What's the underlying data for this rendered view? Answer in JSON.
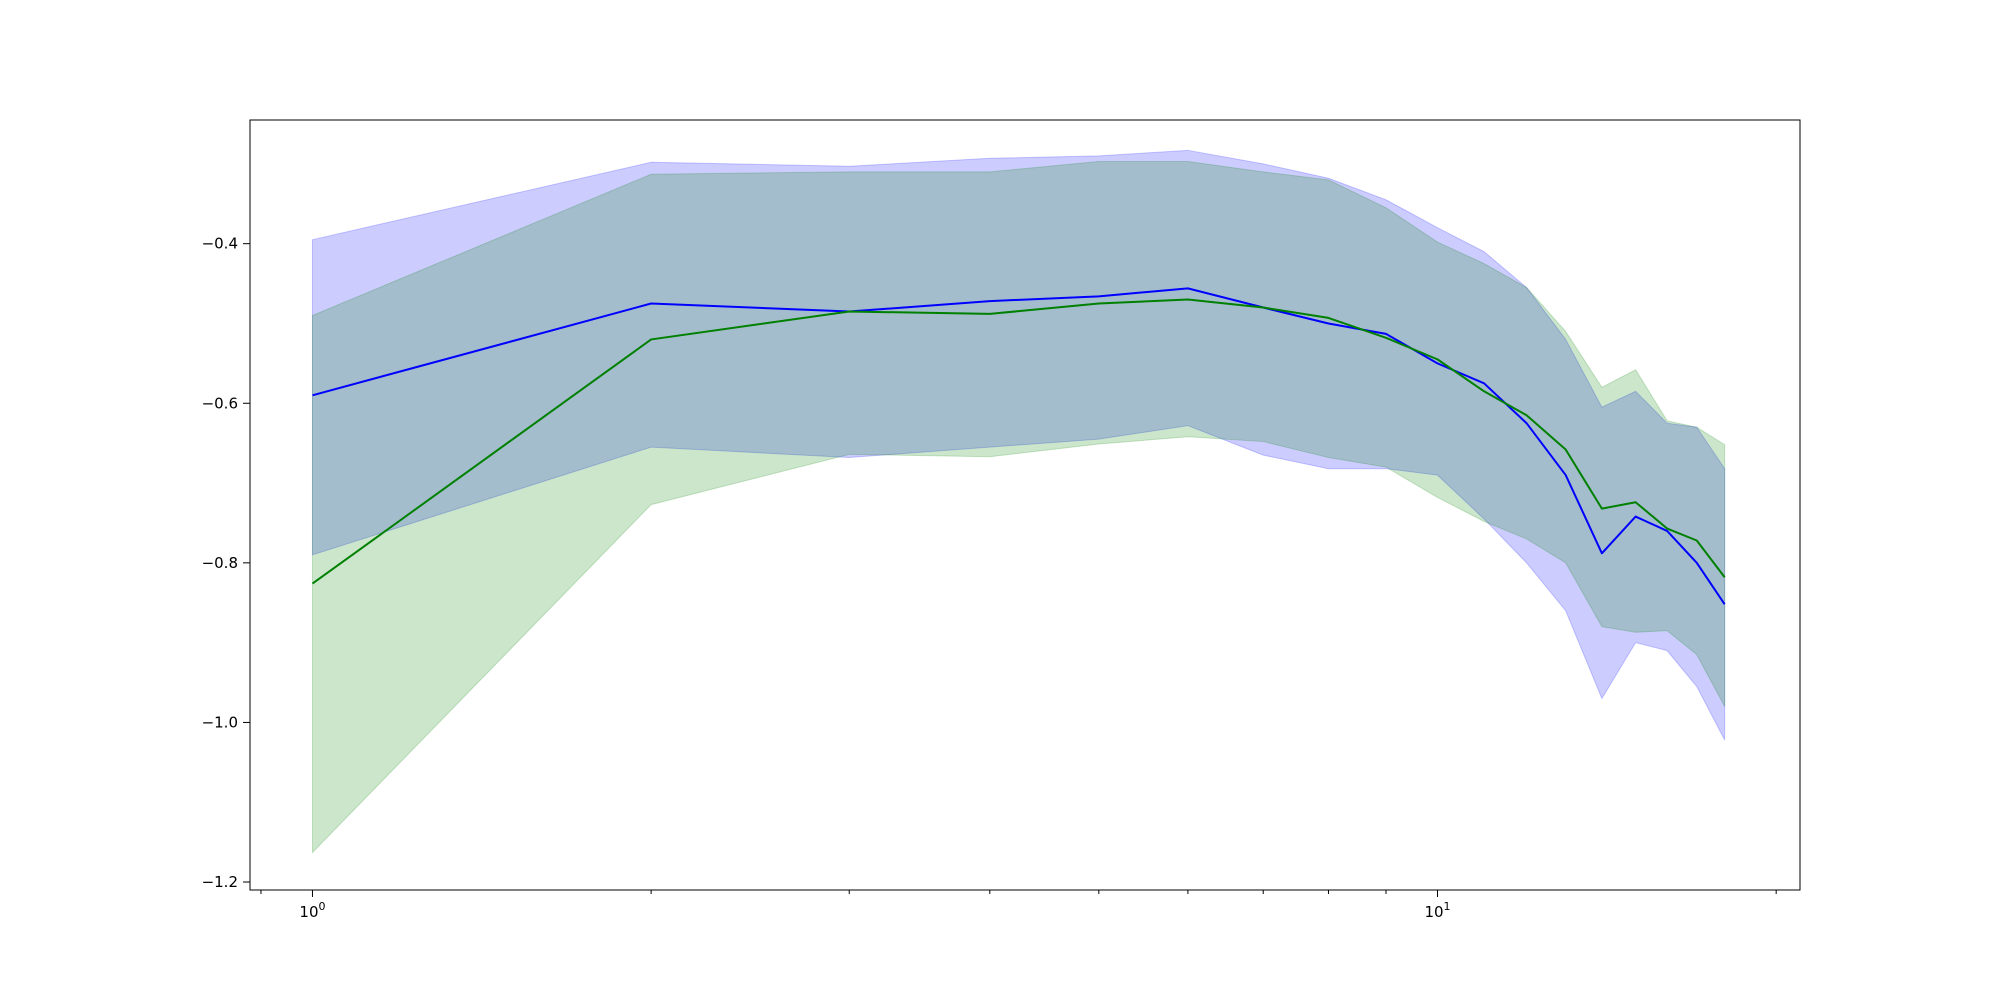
{
  "chart_data": {
    "type": "line",
    "title": "",
    "xlabel": "",
    "ylabel": "",
    "x_scale": "log",
    "xlim": [
      0.88,
      21
    ],
    "ylim": [
      -1.21,
      -0.245
    ],
    "grid": false,
    "x_ticks": [
      {
        "value": 1,
        "mantissa": "10",
        "exponent": "0"
      },
      {
        "value": 10,
        "mantissa": "10",
        "exponent": "1"
      }
    ],
    "x_minor_ticks": [
      0.9,
      2,
      3,
      4,
      5,
      6,
      7,
      8,
      9,
      20
    ],
    "y_ticks": [
      {
        "value": -1.2,
        "label": "−1.2"
      },
      {
        "value": -1.0,
        "label": "−1.0"
      },
      {
        "value": -0.8,
        "label": "−0.8"
      },
      {
        "value": -0.6,
        "label": "−0.6"
      },
      {
        "value": -0.4,
        "label": "−0.4"
      }
    ],
    "x": [
      1,
      2,
      3,
      4,
      5,
      6,
      7,
      8,
      9,
      10,
      11,
      12,
      13,
      14,
      15,
      16,
      17,
      18
    ],
    "series": [
      {
        "color": "#0000ff",
        "band_color": "#0000ff",
        "band_opacity": 0.2,
        "values": [
          -0.59,
          -0.475,
          -0.485,
          -0.472,
          -0.466,
          -0.456,
          -0.48,
          -0.5,
          -0.513,
          -0.55,
          -0.575,
          -0.625,
          -0.69,
          -0.788,
          -0.742,
          -0.76,
          -0.8,
          -0.852
        ],
        "lower": [
          -0.79,
          -0.655,
          -0.668,
          -0.655,
          -0.645,
          -0.628,
          -0.665,
          -0.682,
          -0.682,
          -0.69,
          -0.745,
          -0.8,
          -0.86,
          -0.97,
          -0.9,
          -0.91,
          -0.955,
          -1.022
        ],
        "upper": [
          -0.395,
          -0.298,
          -0.303,
          -0.293,
          -0.29,
          -0.283,
          -0.3,
          -0.318,
          -0.345,
          -0.38,
          -0.41,
          -0.455,
          -0.52,
          -0.605,
          -0.585,
          -0.625,
          -0.63,
          -0.682
        ]
      },
      {
        "color": "#008000",
        "band_color": "#008000",
        "band_opacity": 0.2,
        "values": [
          -0.826,
          -0.52,
          -0.485,
          -0.488,
          -0.475,
          -0.47,
          -0.48,
          -0.493,
          -0.518,
          -0.545,
          -0.585,
          -0.615,
          -0.658,
          -0.732,
          -0.724,
          -0.757,
          -0.772,
          -0.818
        ],
        "lower": [
          -1.163,
          -0.727,
          -0.664,
          -0.667,
          -0.651,
          -0.642,
          -0.648,
          -0.668,
          -0.68,
          -0.718,
          -0.748,
          -0.77,
          -0.8,
          -0.88,
          -0.887,
          -0.885,
          -0.915,
          -0.98
        ],
        "upper": [
          -0.49,
          -0.313,
          -0.31,
          -0.31,
          -0.297,
          -0.297,
          -0.31,
          -0.32,
          -0.355,
          -0.398,
          -0.425,
          -0.455,
          -0.51,
          -0.58,
          -0.558,
          -0.622,
          -0.63,
          -0.652
        ]
      }
    ]
  }
}
